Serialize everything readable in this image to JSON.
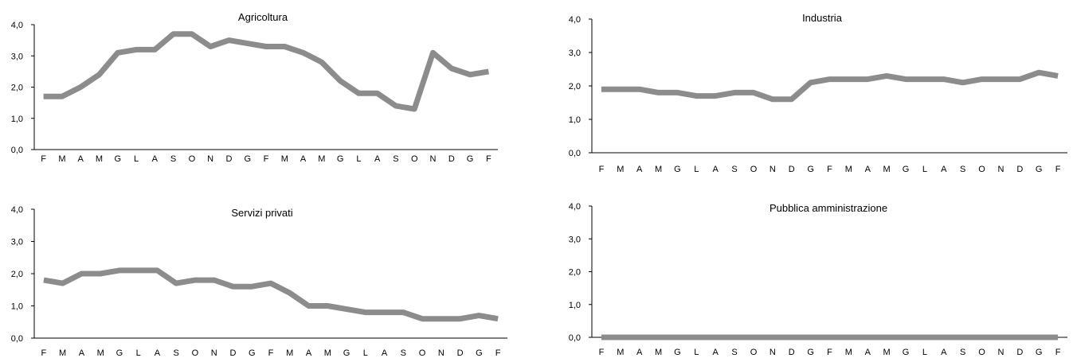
{
  "colors": {
    "series": "#8c8c8c",
    "axis": "#000000",
    "background": "#ffffff"
  },
  "chart_data": [
    {
      "type": "line",
      "title": "Agricoltura",
      "categories": [
        "F",
        "M",
        "A",
        "M",
        "G",
        "L",
        "A",
        "S",
        "O",
        "N",
        "D",
        "G",
        "F",
        "M",
        "A",
        "M",
        "G",
        "L",
        "A",
        "S",
        "O",
        "N",
        "D",
        "G",
        "F"
      ],
      "series": [
        {
          "values": [
            1.7,
            1.7,
            2.0,
            2.4,
            3.1,
            3.2,
            3.2,
            3.7,
            3.7,
            3.3,
            3.5,
            3.4,
            3.3,
            3.3,
            3.1,
            2.8,
            2.2,
            1.8,
            1.8,
            1.4,
            1.3,
            3.1,
            2.6,
            2.4,
            2.5
          ]
        }
      ],
      "ylim": [
        0,
        4
      ],
      "yticks": [
        "0,0",
        "1,0",
        "2,0",
        "3,0",
        "4,0"
      ],
      "grid": false
    },
    {
      "type": "line",
      "title": "Industria",
      "categories": [
        "F",
        "M",
        "A",
        "M",
        "G",
        "L",
        "A",
        "S",
        "O",
        "N",
        "D",
        "G",
        "F",
        "M",
        "A",
        "M",
        "G",
        "L",
        "A",
        "S",
        "O",
        "N",
        "D",
        "G",
        "F"
      ],
      "series": [
        {
          "values": [
            1.9,
            1.9,
            1.9,
            1.8,
            1.8,
            1.7,
            1.7,
            1.8,
            1.8,
            1.6,
            1.6,
            2.1,
            2.2,
            2.2,
            2.2,
            2.3,
            2.2,
            2.2,
            2.2,
            2.1,
            2.2,
            2.2,
            2.2,
            2.4,
            2.3
          ]
        }
      ],
      "ylim": [
        0,
        4
      ],
      "yticks": [
        "0,0",
        "1,0",
        "2,0",
        "3,0",
        "4,0"
      ],
      "grid": false
    },
    {
      "type": "line",
      "title": "Servizi privati",
      "categories": [
        "F",
        "M",
        "A",
        "M",
        "G",
        "L",
        "A",
        "S",
        "O",
        "N",
        "D",
        "G",
        "F",
        "M",
        "A",
        "M",
        "G",
        "L",
        "A",
        "S",
        "O",
        "N",
        "D",
        "G",
        "F"
      ],
      "series": [
        {
          "values": [
            1.8,
            1.7,
            2.0,
            2.0,
            2.1,
            2.1,
            2.1,
            1.7,
            1.8,
            1.8,
            1.6,
            1.6,
            1.7,
            1.4,
            1.0,
            1.0,
            0.9,
            0.8,
            0.8,
            0.8,
            0.6,
            0.6,
            0.6,
            0.7,
            0.6
          ]
        }
      ],
      "ylim": [
        0,
        4
      ],
      "yticks": [
        "0,0",
        "1,0",
        "2,0",
        "3,0",
        "4,0"
      ],
      "grid": false
    },
    {
      "type": "line",
      "title": "Pubblica amministrazione",
      "categories": [
        "F",
        "M",
        "A",
        "M",
        "G",
        "L",
        "A",
        "S",
        "O",
        "N",
        "D",
        "G",
        "F",
        "M",
        "A",
        "M",
        "G",
        "L",
        "A",
        "S",
        "O",
        "N",
        "D",
        "G",
        "F"
      ],
      "series": [
        {
          "values": [
            0,
            0,
            0,
            0,
            0,
            0,
            0,
            0,
            0,
            0,
            0,
            0,
            0,
            0,
            0,
            0,
            0,
            0,
            0,
            0,
            0,
            0,
            0,
            0,
            0
          ]
        }
      ],
      "ylim": [
        0,
        4
      ],
      "yticks": [
        "0,0",
        "1,0",
        "2,0",
        "3,0",
        "4,0"
      ],
      "grid": false
    }
  ]
}
